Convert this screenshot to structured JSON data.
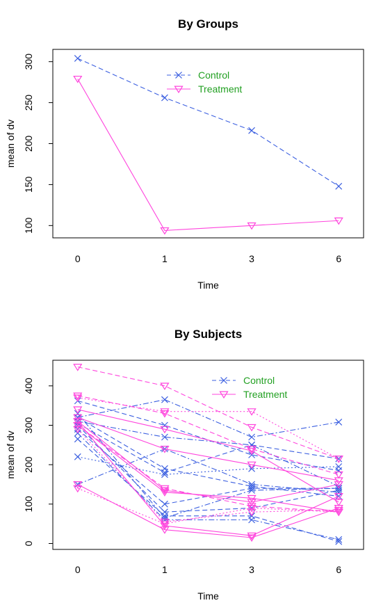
{
  "chart_data": [
    {
      "type": "line",
      "title": "By Groups",
      "xlabel": "Time",
      "ylabel": "mean of  dv",
      "x": [
        "0",
        "1",
        "3",
        "6"
      ],
      "yticks": [
        100,
        150,
        200,
        250,
        300
      ],
      "ylim": [
        85,
        315
      ],
      "grid": false,
      "legend_position": "top-center",
      "legend_text_color": "#22a022",
      "series": [
        {
          "name": "Control",
          "color": "#3b5fe0",
          "marker": "x",
          "dash": "dashed",
          "values": [
            304,
            256,
            216,
            148
          ]
        },
        {
          "name": "Treatment",
          "color": "#ff44dd",
          "marker": "triangle-down",
          "dash": "solid",
          "values": [
            279,
            94,
            100,
            106
          ]
        }
      ]
    },
    {
      "type": "line",
      "title": "By Subjects",
      "xlabel": "Time",
      "ylabel": "mean of  dv",
      "x": [
        "0",
        "1",
        "3",
        "6"
      ],
      "yticks": [
        0,
        100,
        200,
        300,
        400
      ],
      "ylim": [
        -15,
        465
      ],
      "grid": false,
      "legend_position": "top-center",
      "legend_text_color": "#22a022",
      "legend": [
        {
          "name": "Control",
          "color": "#3b5fe0",
          "marker": "x"
        },
        {
          "name": "Treatment",
          "color": "#ff44dd",
          "marker": "triangle-down"
        }
      ],
      "series": [
        {
          "group": "Control",
          "color": "#3b5fe0",
          "marker": "x",
          "dash": "dashed",
          "values": [
            305,
            180,
            250,
            215
          ]
        },
        {
          "group": "Control",
          "color": "#3b5fe0",
          "marker": "x",
          "dash": "dashdot",
          "values": [
            320,
            365,
            270,
            308
          ]
        },
        {
          "group": "Control",
          "color": "#3b5fe0",
          "marker": "x",
          "dash": "dashed",
          "values": [
            362,
            300,
            225,
            185
          ]
        },
        {
          "group": "Control",
          "color": "#3b5fe0",
          "marker": "x",
          "dash": "dashdot",
          "values": [
            310,
            270,
            250,
            145
          ]
        },
        {
          "group": "Control",
          "color": "#3b5fe0",
          "marker": "x",
          "dash": "dashed",
          "values": [
            290,
            100,
            140,
            140
          ]
        },
        {
          "group": "Control",
          "color": "#3b5fe0",
          "marker": "x",
          "dash": "dashdot",
          "values": [
            280,
            60,
            60,
            10
          ]
        },
        {
          "group": "Control",
          "color": "#3b5fe0",
          "marker": "x",
          "dash": "dashed",
          "values": [
            265,
            70,
            70,
            5
          ]
        },
        {
          "group": "Control",
          "color": "#3b5fe0",
          "marker": "x",
          "dash": "dotted",
          "values": [
            220,
            175,
            190,
            195
          ]
        },
        {
          "group": "Control",
          "color": "#3b5fe0",
          "marker": "x",
          "dash": "dashdot",
          "values": [
            150,
            240,
            150,
            130
          ]
        },
        {
          "group": "Control",
          "color": "#3b5fe0",
          "marker": "x",
          "dash": "dashed",
          "values": [
            320,
            190,
            145,
            120
          ]
        },
        {
          "group": "Control",
          "color": "#3b5fe0",
          "marker": "x",
          "dash": "dashdot",
          "values": [
            330,
            65,
            135,
            140
          ]
        },
        {
          "group": "Control",
          "color": "#3b5fe0",
          "marker": "x",
          "dash": "dashed",
          "values": [
            300,
            80,
            90,
            135
          ]
        },
        {
          "group": "Treatment",
          "color": "#ff44dd",
          "marker": "triangle-down",
          "dash": "dashed",
          "values": [
            448,
            400,
            295,
            215
          ]
        },
        {
          "group": "Treatment",
          "color": "#ff44dd",
          "marker": "triangle-down",
          "dash": "dashed",
          "values": [
            375,
            330,
            240,
            175
          ]
        },
        {
          "group": "Treatment",
          "color": "#ff44dd",
          "marker": "triangle-down",
          "dash": "dotted",
          "values": [
            370,
            335,
            335,
            215
          ]
        },
        {
          "group": "Treatment",
          "color": "#ff44dd",
          "marker": "triangle-down",
          "dash": "solid",
          "values": [
            340,
            290,
            235,
            105
          ]
        },
        {
          "group": "Treatment",
          "color": "#ff44dd",
          "marker": "triangle-down",
          "dash": "solid",
          "values": [
            320,
            240,
            200,
            160
          ]
        },
        {
          "group": "Treatment",
          "color": "#ff44dd",
          "marker": "triangle-down",
          "dash": "solid",
          "values": [
            310,
            135,
            105,
            150
          ]
        },
        {
          "group": "Treatment",
          "color": "#ff44dd",
          "marker": "triangle-down",
          "dash": "dashed",
          "values": [
            300,
            140,
            95,
            80
          ]
        },
        {
          "group": "Treatment",
          "color": "#ff44dd",
          "marker": "triangle-down",
          "dash": "solid",
          "values": [
            310,
            45,
            20,
            120
          ]
        },
        {
          "group": "Treatment",
          "color": "#ff44dd",
          "marker": "triangle-down",
          "dash": "dotted",
          "values": [
            290,
            55,
            80,
            85
          ]
        },
        {
          "group": "Treatment",
          "color": "#ff44dd",
          "marker": "triangle-down",
          "dash": "solid",
          "values": [
            150,
            35,
            15,
            90
          ]
        },
        {
          "group": "Treatment",
          "color": "#ff44dd",
          "marker": "triangle-down",
          "dash": "dotted",
          "values": [
            140,
            50,
            90,
            80
          ]
        },
        {
          "group": "Treatment",
          "color": "#ff44dd",
          "marker": "triangle-down",
          "dash": "solid",
          "values": [
            300,
            130,
            115,
            80
          ]
        }
      ]
    }
  ]
}
